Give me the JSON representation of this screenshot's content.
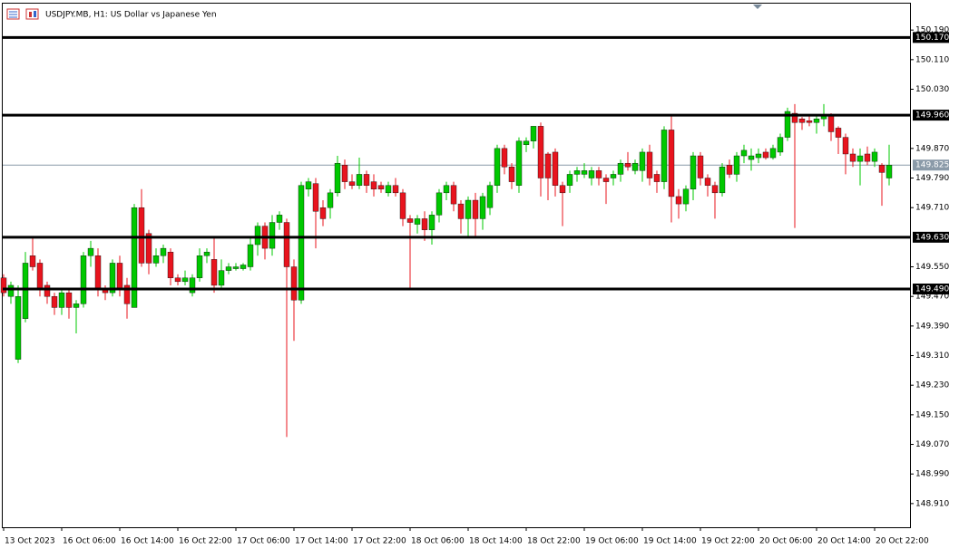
{
  "chart_data": {
    "type": "candlestick",
    "title": "USDJPY.MB, H1:  US Dollar vs Japanese Yen",
    "categories": [
      "13 Oct 2023",
      null,
      null,
      null,
      null,
      null,
      null,
      null,
      "16 Oct 06:00",
      null,
      null,
      null,
      null,
      null,
      null,
      null,
      "16 Oct 14:00",
      null,
      null,
      null,
      null,
      null,
      null,
      null,
      "16 Oct 22:00",
      null,
      null,
      null,
      null,
      null,
      null,
      null,
      "17 Oct 06:00",
      null,
      null,
      null,
      null,
      null,
      null,
      null,
      "17 Oct 14:00",
      null,
      null,
      null,
      null,
      null,
      null,
      null,
      "17 Oct 22:00",
      null,
      null,
      null,
      null,
      null,
      null,
      null,
      "18 Oct 06:00",
      null,
      null,
      null,
      null,
      null,
      null,
      null,
      "18 Oct 14:00",
      null,
      null,
      null,
      null,
      null,
      null,
      null,
      "18 Oct 22:00",
      null,
      null,
      null,
      null,
      null,
      null,
      null,
      "19 Oct 06:00",
      null,
      null,
      null,
      null,
      null,
      null,
      null,
      "19 Oct 14:00",
      null,
      null,
      null,
      null,
      null,
      null,
      null,
      "19 Oct 22:00",
      null,
      null,
      null,
      null,
      null,
      null,
      null,
      "20 Oct 06:00",
      null,
      null,
      null,
      null,
      null,
      null,
      null,
      "20 Oct 14:00",
      null,
      null,
      null,
      null,
      null,
      null,
      null,
      "20 Oct 22:00",
      null,
      null
    ],
    "open": [
      149.52,
      149.47,
      149.3,
      149.41,
      149.58,
      149.56,
      149.5,
      149.47,
      149.44,
      149.48,
      149.44,
      149.45,
      149.58,
      149.58,
      149.49,
      149.48,
      149.56,
      149.5,
      149.44,
      149.71,
      149.64,
      149.56,
      149.58,
      149.59,
      149.52,
      149.51,
      149.48,
      149.52,
      149.58,
      149.57,
      149.5,
      149.54,
      149.545,
      149.545,
      149.55,
      149.61,
      149.66,
      149.6,
      149.67,
      149.67,
      149.55,
      149.46,
      149.76,
      149.775,
      149.71,
      149.71,
      149.75,
      149.825,
      149.78,
      149.77,
      149.8,
      149.78,
      149.77,
      149.75,
      149.77,
      149.75,
      149.68,
      149.665,
      149.68,
      149.65,
      149.69,
      149.75,
      149.77,
      149.72,
      149.68,
      149.73,
      149.68,
      149.71,
      149.77,
      149.87,
      149.82,
      149.77,
      149.88,
      149.89,
      149.93,
      149.855,
      149.86,
      149.77,
      149.77,
      149.8,
      149.8,
      149.79,
      149.81,
      149.79,
      149.79,
      149.8,
      149.83,
      149.81,
      149.81,
      149.86,
      149.8,
      149.78,
      149.92,
      149.74,
      149.72,
      149.76,
      149.85,
      149.79,
      149.77,
      149.75,
      149.825,
      149.8,
      149.85,
      149.84,
      149.845,
      149.86,
      149.845,
      149.86,
      149.9,
      149.965,
      149.95,
      149.945,
      149.94,
      149.95,
      149.96,
      149.925,
      149.9,
      149.855,
      149.835,
      149.855,
      149.835,
      149.825,
      149.79
    ],
    "high": [
      149.53,
      149.51,
      149.5,
      149.59,
      149.63,
      149.57,
      149.51,
      149.48,
      149.49,
      149.49,
      149.46,
      149.59,
      149.62,
      149.6,
      149.5,
      149.57,
      149.58,
      149.52,
      149.72,
      149.76,
      149.65,
      149.6,
      149.61,
      149.6,
      149.53,
      149.54,
      149.53,
      149.6,
      149.6,
      149.63,
      149.57,
      149.56,
      149.56,
      149.56,
      149.63,
      149.67,
      149.67,
      149.69,
      149.7,
      149.68,
      149.57,
      149.78,
      149.79,
      149.79,
      149.73,
      149.76,
      149.85,
      149.84,
      149.8,
      149.845,
      149.81,
      149.8,
      149.78,
      149.78,
      149.79,
      149.76,
      149.69,
      149.69,
      149.7,
      149.7,
      149.76,
      149.78,
      149.78,
      149.73,
      149.74,
      149.75,
      149.75,
      149.78,
      149.88,
      149.88,
      149.83,
      149.9,
      149.9,
      149.93,
      149.94,
      149.86,
      149.87,
      149.78,
      149.81,
      149.82,
      149.83,
      149.82,
      149.82,
      149.8,
      149.81,
      149.84,
      149.86,
      149.84,
      149.87,
      149.88,
      149.81,
      149.93,
      149.96,
      149.76,
      149.77,
      149.86,
      149.86,
      149.8,
      149.78,
      149.83,
      149.84,
      149.86,
      149.88,
      149.87,
      149.87,
      149.87,
      149.88,
      149.91,
      149.98,
      149.99,
      149.955,
      149.96,
      149.96,
      149.99,
      149.965,
      149.93,
      149.91,
      149.87,
      149.87,
      149.875,
      149.87,
      149.83,
      149.88
    ],
    "low": [
      149.47,
      149.45,
      149.29,
      149.4,
      149.54,
      149.47,
      149.45,
      149.42,
      149.42,
      149.41,
      149.37,
      149.44,
      149.55,
      149.47,
      149.46,
      149.47,
      149.47,
      149.41,
      149.44,
      149.55,
      149.53,
      149.55,
      149.56,
      149.5,
      149.5,
      149.5,
      149.47,
      149.51,
      149.56,
      149.48,
      149.49,
      149.53,
      149.54,
      149.54,
      149.54,
      149.58,
      149.57,
      149.58,
      149.65,
      149.09,
      149.35,
      149.45,
      149.74,
      149.6,
      149.66,
      149.68,
      149.74,
      149.76,
      149.76,
      149.76,
      149.75,
      149.74,
      149.75,
      149.74,
      149.74,
      149.66,
      149.49,
      149.64,
      149.62,
      149.61,
      149.67,
      149.73,
      149.7,
      149.64,
      149.63,
      149.63,
      149.65,
      149.69,
      149.75,
      149.8,
      149.76,
      149.75,
      149.86,
      149.87,
      149.74,
      149.73,
      149.74,
      149.66,
      149.75,
      149.78,
      149.79,
      149.77,
      149.77,
      149.72,
      149.77,
      149.78,
      149.81,
      149.8,
      149.78,
      149.77,
      149.75,
      149.76,
      149.67,
      149.68,
      149.7,
      149.73,
      149.77,
      149.74,
      149.68,
      149.74,
      149.79,
      149.78,
      149.83,
      149.81,
      149.83,
      149.84,
      149.84,
      149.85,
      149.89,
      149.655,
      149.92,
      149.93,
      149.91,
      149.93,
      149.89,
      149.855,
      149.8,
      149.82,
      149.77,
      149.825,
      149.82,
      149.715,
      149.77
    ],
    "close": [
      149.48,
      149.5,
      149.47,
      149.56,
      149.55,
      149.49,
      149.47,
      149.44,
      149.48,
      149.44,
      149.45,
      149.58,
      149.6,
      149.49,
      149.48,
      149.56,
      149.49,
      149.45,
      149.71,
      149.56,
      149.56,
      149.58,
      149.6,
      149.52,
      149.51,
      149.52,
      149.52,
      149.58,
      149.59,
      149.5,
      149.54,
      149.55,
      149.55,
      149.555,
      149.61,
      149.66,
      149.6,
      149.67,
      149.69,
      149.55,
      149.46,
      149.77,
      149.78,
      149.7,
      149.68,
      149.75,
      149.83,
      149.78,
      149.77,
      149.8,
      149.77,
      149.76,
      149.76,
      149.77,
      149.75,
      149.68,
      149.67,
      149.68,
      149.65,
      149.69,
      149.75,
      149.77,
      149.72,
      149.68,
      149.73,
      149.68,
      149.74,
      149.77,
      149.87,
      149.82,
      149.78,
      149.89,
      149.89,
      149.93,
      149.79,
      149.79,
      149.77,
      149.75,
      149.8,
      149.81,
      149.81,
      149.81,
      149.79,
      149.78,
      149.8,
      149.83,
      149.82,
      149.83,
      149.86,
      149.79,
      149.78,
      149.92,
      149.74,
      149.72,
      149.76,
      149.85,
      149.79,
      149.77,
      149.75,
      149.82,
      149.8,
      149.85,
      149.865,
      149.85,
      149.855,
      149.845,
      149.87,
      149.9,
      149.97,
      149.94,
      149.94,
      149.94,
      149.95,
      149.96,
      149.915,
      149.9,
      149.855,
      149.835,
      149.85,
      149.835,
      149.86,
      149.805,
      149.825
    ],
    "up_color": "#00c800",
    "down_color": "#e8141e",
    "ylim": [
      148.846,
      150.259
    ],
    "yticks": [
      {
        "value": 150.19,
        "label": "150.190"
      },
      {
        "value": 150.11,
        "label": "150.110"
      },
      {
        "value": 150.03,
        "label": "150.030"
      },
      {
        "value": 149.87,
        "label": "149.870"
      },
      {
        "value": 149.79,
        "label": "149.790"
      },
      {
        "value": 149.71,
        "label": "149.710"
      },
      {
        "value": 149.55,
        "label": "149.550"
      },
      {
        "value": 149.47,
        "label": "149.470"
      },
      {
        "value": 149.39,
        "label": "149.390"
      },
      {
        "value": 149.31,
        "label": "149.310"
      },
      {
        "value": 149.23,
        "label": "149.230"
      },
      {
        "value": 149.15,
        "label": "149.150"
      },
      {
        "value": 149.07,
        "label": "149.070"
      },
      {
        "value": 148.99,
        "label": "148.990"
      },
      {
        "value": 148.91,
        "label": "148.910"
      }
    ],
    "levels": [
      {
        "value": 150.17,
        "label": "150.170"
      },
      {
        "value": 149.96,
        "label": "149.960"
      },
      {
        "value": 149.63,
        "label": "149.630"
      },
      {
        "value": 149.49,
        "label": "149.490"
      }
    ],
    "current_price": {
      "value": 149.825,
      "label": "149.825"
    }
  }
}
